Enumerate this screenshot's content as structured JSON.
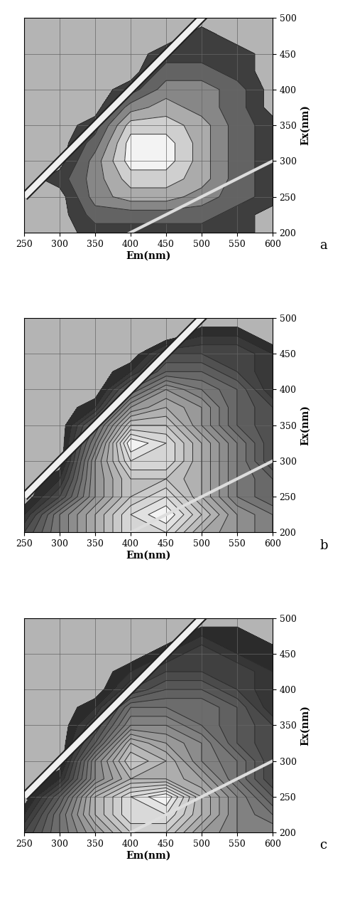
{
  "chart_data": [
    {
      "type": "contour",
      "title": "a",
      "x_label": "Em(nm)",
      "y_label": "Ex(nm)",
      "x": [
        250,
        300,
        350,
        400,
        450,
        500,
        550,
        600
      ],
      "y": [
        200,
        225,
        250,
        275,
        300,
        325,
        350,
        375,
        400,
        425,
        450,
        475,
        500
      ],
      "z": [
        [
          0,
          0,
          1,
          1,
          1,
          1,
          1,
          0
        ],
        [
          0,
          0,
          2,
          2,
          2,
          2,
          1,
          0
        ],
        [
          0,
          0,
          3,
          4,
          4,
          3,
          2,
          1
        ],
        [
          0,
          1,
          3,
          5,
          5,
          4,
          2,
          1
        ],
        [
          0,
          0,
          3,
          6,
          6,
          4,
          2,
          1
        ],
        [
          0,
          0,
          2,
          6,
          6,
          4,
          2,
          1
        ],
        [
          0,
          0,
          1,
          5,
          5,
          4,
          2,
          1
        ],
        [
          0,
          0,
          0,
          3,
          4,
          3,
          2,
          0
        ],
        [
          0,
          0,
          0,
          1,
          3,
          3,
          2,
          0
        ],
        [
          0,
          0,
          0,
          0,
          2,
          2,
          1,
          0
        ],
        [
          0,
          0,
          0,
          0,
          1,
          1,
          1,
          0
        ],
        [
          0,
          0,
          0,
          0,
          0,
          1,
          0,
          0
        ],
        [
          0,
          0,
          0,
          0,
          0,
          0,
          0,
          0
        ]
      ],
      "levels": [
        0.5,
        1.5,
        2.5,
        3.5,
        4.5,
        5.5,
        6.5
      ],
      "xlim": [
        250,
        600
      ],
      "ylim": [
        200,
        500
      ],
      "xticks": [
        250,
        300,
        350,
        400,
        450,
        500,
        550,
        600
      ],
      "yticks": [
        200,
        250,
        300,
        350,
        400,
        450,
        500
      ],
      "grid": true
    },
    {
      "type": "contour",
      "title": "b",
      "x_label": "Em(nm)",
      "y_label": "Ex(nm)",
      "x": [
        250,
        300,
        350,
        400,
        450,
        500,
        550,
        600
      ],
      "y": [
        200,
        225,
        250,
        275,
        300,
        325,
        350,
        375,
        400,
        425,
        450,
        475,
        500
      ],
      "z": [
        [
          2,
          4,
          6,
          8,
          8,
          6,
          5,
          4
        ],
        [
          1,
          4,
          6,
          8,
          9,
          7,
          5,
          4
        ],
        [
          0,
          2,
          5,
          7,
          8,
          6,
          4,
          3
        ],
        [
          0,
          1,
          5,
          7,
          7,
          6,
          4,
          3
        ],
        [
          0,
          0,
          5,
          8,
          8,
          6,
          4,
          2
        ],
        [
          0,
          0,
          4,
          9,
          8,
          6,
          4,
          2
        ],
        [
          0,
          0,
          3,
          7,
          7,
          5,
          3,
          2
        ],
        [
          0,
          0,
          1,
          5,
          6,
          5,
          3,
          2
        ],
        [
          0,
          0,
          0,
          3,
          5,
          4,
          3,
          1
        ],
        [
          0,
          0,
          0,
          1,
          3,
          3,
          2,
          1
        ],
        [
          0,
          0,
          0,
          0,
          2,
          2,
          2,
          1
        ],
        [
          0,
          0,
          0,
          0,
          0,
          1,
          1,
          0
        ],
        [
          0,
          0,
          0,
          0,
          0,
          0,
          0,
          0
        ]
      ],
      "levels": [
        0.5,
        1,
        1.5,
        2,
        2.5,
        3,
        3.5,
        4,
        4.5,
        5,
        5.5,
        6,
        6.5,
        7,
        7.5,
        8,
        8.5
      ],
      "xlim": [
        250,
        600
      ],
      "ylim": [
        200,
        500
      ],
      "xticks": [
        250,
        300,
        350,
        400,
        450,
        500,
        550,
        600
      ],
      "yticks": [
        200,
        250,
        300,
        350,
        400,
        450,
        500
      ],
      "grid": true
    },
    {
      "type": "contour",
      "title": "c",
      "x_label": "Em(nm)",
      "y_label": "Ex(nm)",
      "x": [
        250,
        300,
        350,
        400,
        450,
        500,
        550,
        600
      ],
      "y": [
        200,
        225,
        250,
        275,
        300,
        325,
        350,
        375,
        400,
        425,
        450,
        475,
        500
      ],
      "z": [
        [
          2,
          4,
          6,
          8,
          8,
          6,
          5,
          5
        ],
        [
          1,
          4,
          7,
          9,
          9,
          7,
          5,
          4
        ],
        [
          0,
          3,
          7,
          9,
          10,
          7,
          5,
          3
        ],
        [
          0,
          1,
          5,
          7,
          7,
          6,
          4,
          2
        ],
        [
          0,
          0,
          5,
          8,
          7,
          5,
          4,
          2
        ],
        [
          0,
          0,
          3,
          7,
          6,
          5,
          3,
          2
        ],
        [
          0,
          0,
          2,
          5,
          5,
          4,
          3,
          2
        ],
        [
          0,
          0,
          1,
          4,
          4,
          4,
          3,
          1
        ],
        [
          0,
          0,
          0,
          2,
          3,
          3,
          2,
          1
        ],
        [
          0,
          0,
          0,
          1,
          2,
          2,
          2,
          1
        ],
        [
          0,
          0,
          0,
          0,
          1,
          2,
          1,
          1
        ],
        [
          0,
          0,
          0,
          0,
          0,
          1,
          1,
          0
        ],
        [
          0,
          0,
          0,
          0,
          0,
          0,
          0,
          0
        ]
      ],
      "levels": [
        0.5,
        1,
        1.5,
        2,
        2.5,
        3,
        3.5,
        4,
        4.5,
        5,
        5.5,
        6,
        6.5,
        7,
        7.5,
        8,
        8.5,
        9,
        9.5
      ],
      "xlim": [
        250,
        600
      ],
      "ylim": [
        200,
        500
      ],
      "xticks": [
        250,
        300,
        350,
        400,
        450,
        500,
        550,
        600
      ],
      "yticks": [
        200,
        250,
        300,
        350,
        400,
        450,
        500
      ],
      "grid": true
    }
  ]
}
